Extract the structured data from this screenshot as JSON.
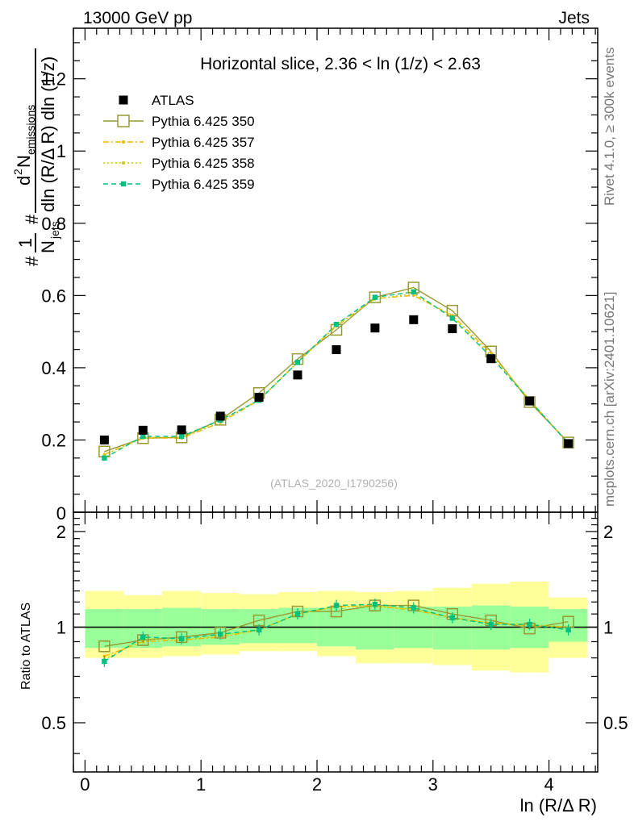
{
  "header": {
    "left": "13000 GeV pp",
    "right": "Jets"
  },
  "side_text": {
    "rivet": "Rivet 4.1.0, ≥ 300k events",
    "mcplots": "mcplots.cern.ch [arXiv:2401.10621]"
  },
  "watermark": "(ATLAS_2020_I1790256)",
  "chart_data": {
    "type": "scatter",
    "title": "Horizontal slice, 2.36 < ln (1/z) < 2.63",
    "xlabel": "ln (R/Δ R)",
    "ylabel": "1/N_jets dN_emissions / (dln (R/Δ R) dln (1/z))",
    "ylabel_parts": {
      "frac1_num": "1",
      "frac1_den": "N",
      "frac1_den_sub": "jets",
      "frac2_num": "d",
      "frac2_num_sup": "2",
      "frac2_num_main": "N",
      "frac2_num_sub": "emissions",
      "frac2_den": "dln (R/Δ R) dln (1/z)"
    },
    "ratio_ylabel": "Ratio to ATLAS",
    "xlim": [
      -0.1,
      4.42
    ],
    "ylim": [
      0,
      1.34
    ],
    "ratio_ylim": [
      0.35,
      2.3
    ],
    "x_ticks": [
      0,
      1,
      2,
      3,
      4
    ],
    "x_tick_labels": [
      "0",
      "1",
      "2",
      "3",
      "4"
    ],
    "y_ticks": [
      0.2,
      0.4,
      0.6,
      0.8,
      1,
      1.2
    ],
    "y_tick_labels": [
      "0.2",
      "0.4",
      "0.6",
      "0.8",
      "1",
      "1.2"
    ],
    "y_zero_label": "0",
    "ratio_ticks": [
      0.5,
      1,
      2
    ],
    "ratio_tick_labels": [
      "0.5",
      "1",
      "2"
    ],
    "x": [
      0.167,
      0.5,
      0.833,
      1.167,
      1.5,
      1.833,
      2.167,
      2.5,
      2.833,
      3.167,
      3.5,
      3.833,
      4.167
    ],
    "data": {
      "name": "ATLAS",
      "values": [
        0.2,
        0.227,
        0.228,
        0.266,
        0.318,
        0.38,
        0.45,
        0.51,
        0.533,
        0.508,
        0.425,
        0.308,
        0.19
      ],
      "band_inner": [
        [
          0.86,
          1.14
        ],
        [
          0.86,
          1.14
        ],
        [
          0.87,
          1.15
        ],
        [
          0.88,
          1.14
        ],
        [
          0.89,
          1.14
        ],
        [
          0.89,
          1.15
        ],
        [
          0.87,
          1.15
        ],
        [
          0.85,
          1.17
        ],
        [
          0.86,
          1.16
        ],
        [
          0.85,
          1.16
        ],
        [
          0.85,
          1.17
        ],
        [
          0.86,
          1.16
        ],
        [
          0.9,
          1.14
        ]
      ],
      "band_outer": [
        [
          0.8,
          1.3
        ],
        [
          0.8,
          1.26
        ],
        [
          0.81,
          1.3
        ],
        [
          0.82,
          1.28
        ],
        [
          0.84,
          1.27
        ],
        [
          0.84,
          1.29
        ],
        [
          0.81,
          1.3
        ],
        [
          0.77,
          1.29
        ],
        [
          0.77,
          1.3
        ],
        [
          0.76,
          1.33
        ],
        [
          0.73,
          1.37
        ],
        [
          0.72,
          1.39
        ],
        [
          0.8,
          1.24
        ]
      ]
    },
    "series": [
      {
        "name": "Pythia 6.425 350",
        "color": "#999933",
        "marker": "open-square",
        "line": "solid",
        "values": [
          0.168,
          0.205,
          0.207,
          0.256,
          0.33,
          0.424,
          0.505,
          0.595,
          0.622,
          0.558,
          0.445,
          0.305,
          0.193
        ],
        "ratio": [
          0.87,
          0.91,
          0.93,
          0.96,
          1.05,
          1.12,
          1.12,
          1.17,
          1.17,
          1.1,
          1.05,
          0.99,
          1.04
        ]
      },
      {
        "name": "Pythia 6.425 357",
        "color": "#f0b800",
        "marker": "dot",
        "line": "dashdot",
        "values": [
          0.16,
          0.205,
          0.205,
          0.248,
          0.31,
          0.415,
          0.515,
          0.592,
          0.6,
          0.545,
          0.44,
          0.31,
          0.19
        ],
        "ratio": [
          0.81,
          0.9,
          0.91,
          0.93,
          0.98,
          1.1,
          1.16,
          1.17,
          1.13,
          1.07,
          1.03,
          1.01,
          1.0
        ]
      },
      {
        "name": "Pythia 6.425 358",
        "color": "#cccc00",
        "marker": "dot",
        "line": "dotted",
        "values": [
          0.158,
          0.208,
          0.207,
          0.252,
          0.312,
          0.416,
          0.518,
          0.59,
          0.605,
          0.54,
          0.435,
          0.312,
          0.19
        ],
        "ratio": [
          0.79,
          0.92,
          0.91,
          0.94,
          0.98,
          1.1,
          1.16,
          1.16,
          1.14,
          1.07,
          1.03,
          1.02,
          1.0
        ]
      },
      {
        "name": "Pythia 6.425 359",
        "color": "#00c080",
        "marker": "filled-square",
        "line": "dashed",
        "values": [
          0.15,
          0.21,
          0.21,
          0.255,
          0.31,
          0.415,
          0.52,
          0.595,
          0.61,
          0.537,
          0.43,
          0.31,
          0.19
        ],
        "ratio": [
          0.78,
          0.93,
          0.92,
          0.95,
          0.98,
          1.1,
          1.17,
          1.18,
          1.15,
          1.07,
          1.02,
          1.02,
          0.98
        ]
      }
    ]
  }
}
